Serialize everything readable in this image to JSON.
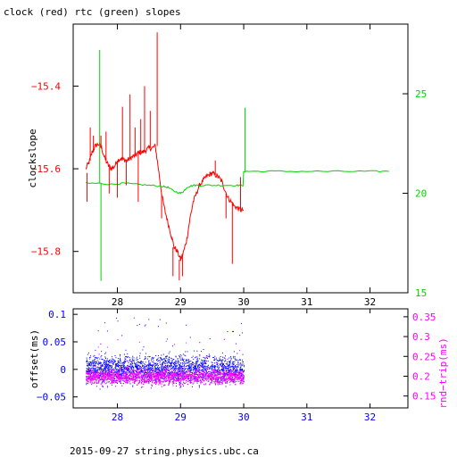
{
  "title": "clock (red) rtc (green) slopes",
  "footer": "2015-09-27 string.physics.ubc.ca",
  "chart_data": [
    {
      "type": "line",
      "ylabel": "clockslope",
      "xlim": [
        27.3,
        32.6
      ],
      "ylim": [
        -15.9,
        -15.25
      ],
      "x_ticks": [
        28,
        29,
        30,
        31,
        32
      ],
      "x_tick_labels": [
        "28",
        "29",
        "30",
        "31",
        "32"
      ],
      "left_ticks": [
        -15.4,
        -15.6,
        -15.8
      ],
      "left_tick_labels": [
        "−15.4",
        "−15.6",
        "−15.8"
      ],
      "right_axis": {
        "ylim": [
          15,
          28.5
        ],
        "ticks": [
          15,
          20,
          25
        ],
        "tick_labels": [
          "15",
          "20",
          "25"
        ]
      },
      "colors": {
        "axes": "#000000",
        "clock": "#ff0000",
        "rtc": "#00d400"
      },
      "series": [
        {
          "name": "clock",
          "axis": "left",
          "x": [
            27.5,
            27.55,
            27.6,
            27.65,
            27.7,
            27.75,
            27.8,
            27.85,
            27.9,
            27.95,
            28.0,
            28.05,
            28.1,
            28.15,
            28.2,
            28.25,
            28.3,
            28.35,
            28.4,
            28.45,
            28.5,
            28.55,
            28.6,
            28.65,
            28.7,
            28.75,
            28.8,
            28.85,
            28.9,
            28.95,
            29.0,
            29.05,
            29.1,
            29.15,
            29.2,
            29.25,
            29.3,
            29.35,
            29.4,
            29.45,
            29.5,
            29.55,
            29.6,
            29.65,
            29.7,
            29.75,
            29.8,
            29.85,
            29.9,
            29.95,
            30.0
          ],
          "values": [
            -15.6,
            -15.585,
            -15.56,
            -15.545,
            -15.54,
            -15.55,
            -15.575,
            -15.59,
            -15.6,
            -15.595,
            -15.58,
            -15.575,
            -15.578,
            -15.58,
            -15.575,
            -15.57,
            -15.565,
            -15.56,
            -15.56,
            -15.555,
            -15.55,
            -15.55,
            -15.545,
            -15.6,
            -15.66,
            -15.7,
            -15.73,
            -15.76,
            -15.79,
            -15.8,
            -15.82,
            -15.8,
            -15.77,
            -15.72,
            -15.68,
            -15.66,
            -15.64,
            -15.63,
            -15.62,
            -15.615,
            -15.61,
            -15.615,
            -15.62,
            -15.63,
            -15.65,
            -15.67,
            -15.68,
            -15.69,
            -15.695,
            -15.7,
            -15.7
          ]
        },
        {
          "name": "rtc",
          "axis": "right",
          "x": [
            27.5,
            27.7,
            27.9,
            28.1,
            28.3,
            28.5,
            28.7,
            28.8,
            28.9,
            29.0,
            29.05,
            29.1,
            29.2,
            29.3,
            29.5,
            29.7,
            29.9,
            29.99,
            30.0,
            30.1,
            30.5,
            31.0,
            31.5,
            32.0,
            32.3
          ],
          "values": [
            20.5,
            20.5,
            20.45,
            20.5,
            20.45,
            20.4,
            20.35,
            20.3,
            20.1,
            20.0,
            20.1,
            20.3,
            20.4,
            20.4,
            20.4,
            20.4,
            20.4,
            20.4,
            21.1,
            21.1,
            21.1,
            21.1,
            21.1,
            21.1,
            21.1
          ]
        }
      ],
      "spikes": [
        {
          "x": 27.72,
          "series": "rtc",
          "from": 20.5,
          "to": 27.2
        },
        {
          "x": 27.74,
          "series": "rtc",
          "from": 20.5,
          "to": 15.6
        },
        {
          "x": 30.02,
          "series": "rtc",
          "from": 21.1,
          "to": 24.3
        },
        {
          "x": 27.52,
          "series": "clock",
          "from": -15.61,
          "to": -15.68
        },
        {
          "x": 27.57,
          "series": "clock",
          "from": -15.58,
          "to": -15.5
        },
        {
          "x": 27.62,
          "series": "clock",
          "from": -15.56,
          "to": -15.52
        },
        {
          "x": 27.74,
          "series": "clock",
          "from": -15.55,
          "to": -15.52
        },
        {
          "x": 27.82,
          "series": "clock",
          "from": -15.58,
          "to": -15.51
        },
        {
          "x": 27.87,
          "series": "clock",
          "from": -15.59,
          "to": -15.66
        },
        {
          "x": 28.0,
          "series": "clock",
          "from": -15.58,
          "to": -15.67
        },
        {
          "x": 28.08,
          "series": "clock",
          "from": -15.58,
          "to": -15.45
        },
        {
          "x": 28.14,
          "series": "clock",
          "from": -15.58,
          "to": -15.64
        },
        {
          "x": 28.2,
          "series": "clock",
          "from": -15.575,
          "to": -15.42
        },
        {
          "x": 28.28,
          "series": "clock",
          "from": -15.57,
          "to": -15.5
        },
        {
          "x": 28.33,
          "series": "clock",
          "from": -15.56,
          "to": -15.68
        },
        {
          "x": 28.37,
          "series": "clock",
          "from": -15.56,
          "to": -15.48
        },
        {
          "x": 28.43,
          "series": "clock",
          "from": -15.555,
          "to": -15.4
        },
        {
          "x": 28.52,
          "series": "clock",
          "from": -15.55,
          "to": -15.46
        },
        {
          "x": 28.63,
          "series": "clock",
          "from": -15.545,
          "to": -15.27
        },
        {
          "x": 28.7,
          "series": "clock",
          "from": -15.66,
          "to": -15.72
        },
        {
          "x": 28.88,
          "series": "clock",
          "from": -15.79,
          "to": -15.86
        },
        {
          "x": 28.98,
          "series": "clock",
          "from": -15.82,
          "to": -15.87
        },
        {
          "x": 29.03,
          "series": "clock",
          "from": -15.81,
          "to": -15.86
        },
        {
          "x": 29.55,
          "series": "clock",
          "from": -15.615,
          "to": -15.58
        },
        {
          "x": 29.72,
          "series": "clock",
          "from": -15.66,
          "to": -15.72
        },
        {
          "x": 29.82,
          "series": "clock",
          "from": -15.68,
          "to": -15.83
        },
        {
          "x": 29.95,
          "series": "clock",
          "from": -15.7,
          "to": -15.62
        }
      ]
    },
    {
      "type": "scatter",
      "ylabel": "offset(ms)",
      "xlim": [
        27.3,
        32.6
      ],
      "ylim": [
        -0.07,
        0.11
      ],
      "x_ticks": [
        28,
        29,
        30,
        31,
        32
      ],
      "x_tick_labels": [
        "28",
        "29",
        "30",
        "31",
        "32"
      ],
      "left_ticks": [
        0.1,
        0.05,
        0,
        -0.05
      ],
      "left_tick_labels": [
        "0.1",
        "0.05",
        "0",
        "−0.05"
      ],
      "right_axis": {
        "label": "rnd−trip(ms)",
        "ylim": [
          0.12,
          0.37
        ],
        "ticks": [
          0.15,
          0.2,
          0.25,
          0.3,
          0.35
        ],
        "tick_labels": [
          "0.15",
          "0.2",
          "0.25",
          "0.3",
          "0.35"
        ]
      },
      "colors": {
        "axes": "#000000",
        "offset": "#0000ff",
        "rndtrip": "#ff00ff",
        "left_axis": "#0000ff",
        "right_axis": "#ff00ff"
      },
      "series": [
        {
          "name": "offset(ms)",
          "axis": "left",
          "x_range": [
            27.5,
            30.0
          ],
          "center": 0.0,
          "spread": 0.022,
          "outlier_max": 0.095,
          "outlier_min": -0.05
        },
        {
          "name": "rnd−trip(ms)",
          "axis": "right",
          "x_range": [
            27.5,
            30.0
          ],
          "center": 0.2,
          "spread": 0.018,
          "outlier_max": 0.3,
          "outlier_min": 0.16
        }
      ]
    }
  ]
}
